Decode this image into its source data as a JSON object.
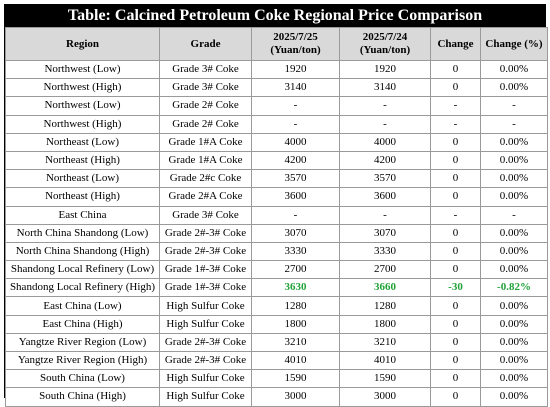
{
  "title": "Table: Calcined Petroleum Coke Regional Price Comparison",
  "columns": {
    "region": "Region",
    "grade": "Grade",
    "date1_a": "2025/7/25",
    "date1_b": "(Yuan/ton)",
    "date2_a": "2025/7/24",
    "date2_b": "(Yuan/ton)",
    "change": "Change",
    "change_pct": "Change (%)"
  },
  "highlight_color": "#22a33a",
  "rows": [
    {
      "region": "Northwest (Low)",
      "grade": "Grade 3# Coke",
      "p1": "1920",
      "p2": "1920",
      "chg": "0",
      "pct": "0.00%",
      "hl": false
    },
    {
      "region": "Northwest (High)",
      "grade": "Grade 3# Coke",
      "p1": "3140",
      "p2": "3140",
      "chg": "0",
      "pct": "0.00%",
      "hl": false
    },
    {
      "region": "Northwest (Low)",
      "grade": "Grade 2# Coke",
      "p1": "-",
      "p2": "-",
      "chg": "-",
      "pct": "-",
      "hl": false
    },
    {
      "region": "Northwest (High)",
      "grade": "Grade 2# Coke",
      "p1": "-",
      "p2": "-",
      "chg": "-",
      "pct": "-",
      "hl": false
    },
    {
      "region": "Northeast (Low)",
      "grade": "Grade 1#A Coke",
      "p1": "4000",
      "p2": "4000",
      "chg": "0",
      "pct": "0.00%",
      "hl": false
    },
    {
      "region": "Northeast (High)",
      "grade": "Grade 1#A Coke",
      "p1": "4200",
      "p2": "4200",
      "chg": "0",
      "pct": "0.00%",
      "hl": false
    },
    {
      "region": "Northeast (Low)",
      "grade": "Grade 2#c Coke",
      "p1": "3570",
      "p2": "3570",
      "chg": "0",
      "pct": "0.00%",
      "hl": false
    },
    {
      "region": "Northeast (High)",
      "grade": "Grade 2#A Coke",
      "p1": "3600",
      "p2": "3600",
      "chg": "0",
      "pct": "0.00%",
      "hl": false
    },
    {
      "region": "East China",
      "grade": "Grade 3# Coke",
      "p1": "-",
      "p2": "-",
      "chg": "-",
      "pct": "-",
      "hl": false
    },
    {
      "region": "North China Shandong (Low)",
      "grade": "Grade 2#-3# Coke",
      "p1": "3070",
      "p2": "3070",
      "chg": "0",
      "pct": "0.00%",
      "hl": false
    },
    {
      "region": "North China Shandong (High)",
      "grade": "Grade 2#-3# Coke",
      "p1": "3330",
      "p2": "3330",
      "chg": "0",
      "pct": "0.00%",
      "hl": false
    },
    {
      "region": "Shandong Local Refinery (Low)",
      "grade": "Grade 1#-3# Coke",
      "p1": "2700",
      "p2": "2700",
      "chg": "0",
      "pct": "0.00%",
      "hl": false
    },
    {
      "region": "Shandong Local Refinery (High)",
      "grade": "Grade 1#-3# Coke",
      "p1": "3630",
      "p2": "3660",
      "chg": "-30",
      "pct": "-0.82%",
      "hl": true
    },
    {
      "region": "East China (Low)",
      "grade": "High Sulfur Coke",
      "p1": "1280",
      "p2": "1280",
      "chg": "0",
      "pct": "0.00%",
      "hl": false
    },
    {
      "region": "East China (High)",
      "grade": "High Sulfur Coke",
      "p1": "1800",
      "p2": "1800",
      "chg": "0",
      "pct": "0.00%",
      "hl": false
    },
    {
      "region": "Yangtze River Region (Low)",
      "grade": "Grade 2#-3# Coke",
      "p1": "3210",
      "p2": "3210",
      "chg": "0",
      "pct": "0.00%",
      "hl": false
    },
    {
      "region": "Yangtze River Region (High)",
      "grade": "Grade 2#-3# Coke",
      "p1": "4010",
      "p2": "4010",
      "chg": "0",
      "pct": "0.00%",
      "hl": false
    },
    {
      "region": "South China (Low)",
      "grade": "High Sulfur Coke",
      "p1": "1590",
      "p2": "1590",
      "chg": "0",
      "pct": "0.00%",
      "hl": false
    },
    {
      "region": "South China (High)",
      "grade": "High Sulfur Coke",
      "p1": "3000",
      "p2": "3000",
      "chg": "0",
      "pct": "0.00%",
      "hl": false
    }
  ]
}
